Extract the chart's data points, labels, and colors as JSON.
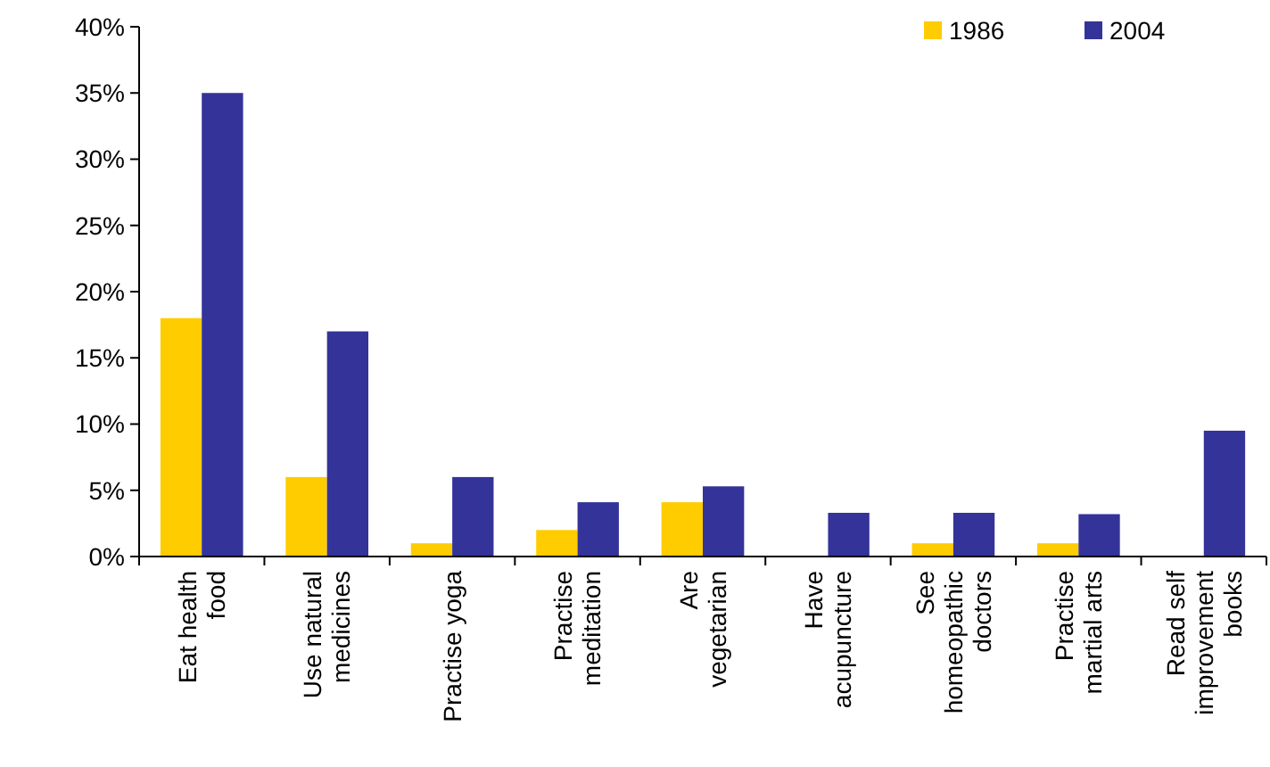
{
  "chart_data": {
    "type": "bar",
    "categories": [
      "Eat health food",
      "Use natural medicines",
      "Practise yoga",
      "Practise meditation",
      "Are vegetarian",
      "Have acupuncture",
      "See homeopathic doctors",
      "Practise martial arts",
      "Read self improvement books"
    ],
    "series": [
      {
        "name": "1986",
        "color": "#ffcc00",
        "values": [
          18,
          6,
          1,
          2,
          4.1,
          null,
          1,
          1,
          null
        ]
      },
      {
        "name": "2004",
        "color": "#333399",
        "values": [
          35,
          17,
          6,
          4.1,
          5.3,
          3.3,
          3.3,
          3.2,
          9.5
        ]
      }
    ],
    "ylim": [
      0,
      40
    ],
    "yticks": [
      {
        "value": 0,
        "label": "0%"
      },
      {
        "value": 5,
        "label": "5%"
      },
      {
        "value": 10,
        "label": "10%"
      },
      {
        "value": 15,
        "label": "15%"
      },
      {
        "value": 20,
        "label": "20%"
      },
      {
        "value": 25,
        "label": "25%"
      },
      {
        "value": 30,
        "label": "30%"
      },
      {
        "value": 35,
        "label": "35%"
      },
      {
        "value": 40,
        "label": "40%"
      }
    ],
    "grid": false,
    "legend": "top right"
  }
}
